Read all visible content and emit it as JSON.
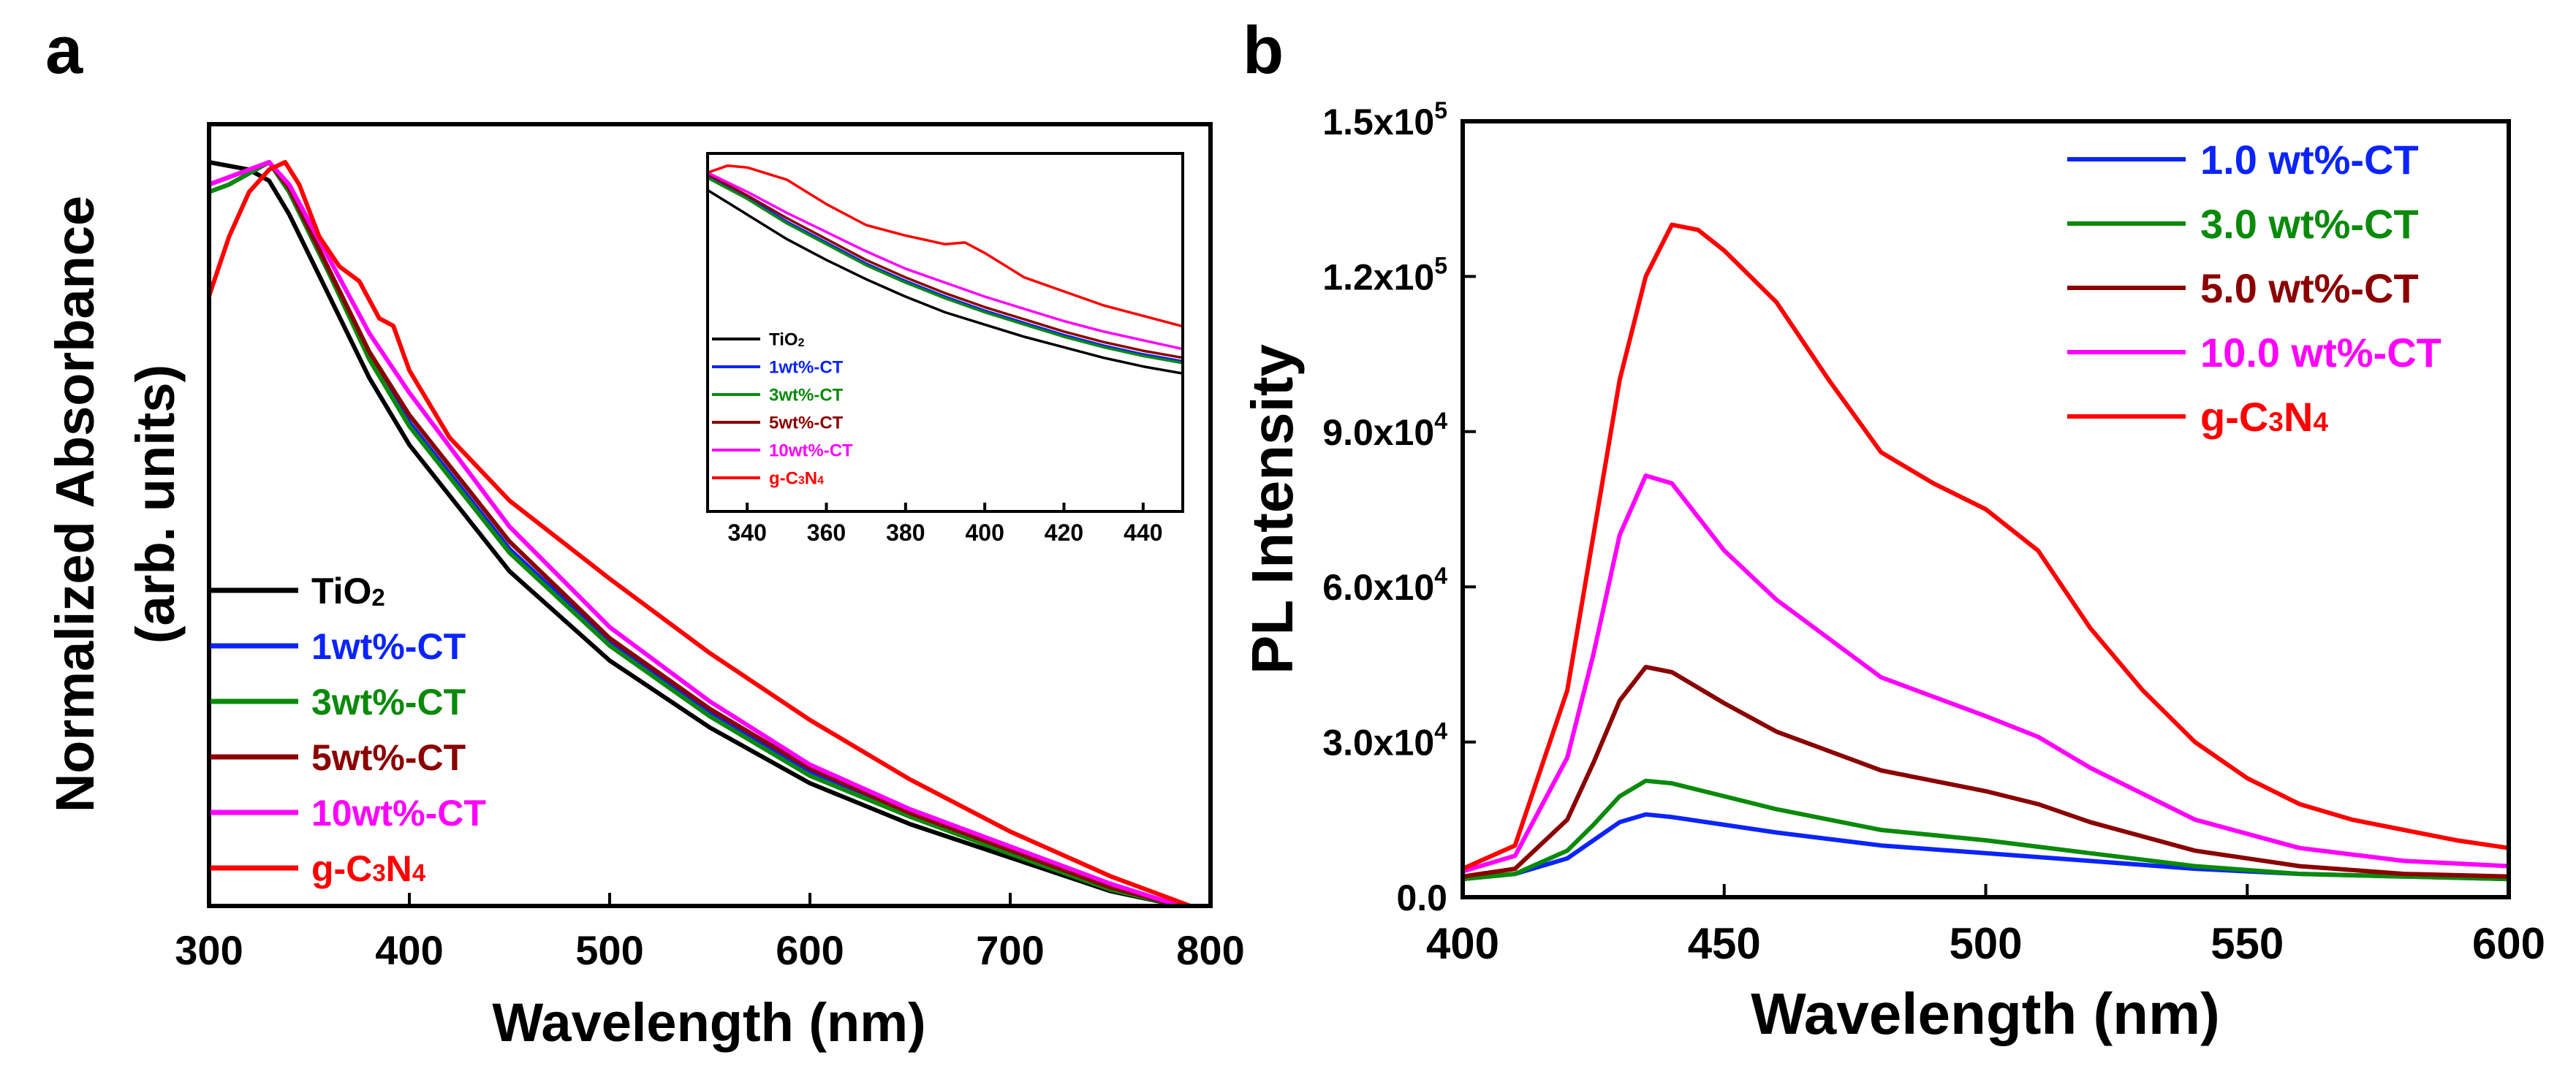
{
  "panels": {
    "a": {
      "letter": "a"
    },
    "b": {
      "letter": "b"
    }
  },
  "colors": {
    "TiO2": "#000000",
    "1wt%-CT": "#0b24fb",
    "3wt%-CT": "#0a8a0a",
    "5wt%-CT": "#8b0000",
    "10wt%-CT": "#ff00ff",
    "g-C3N4": "#ff0000"
  },
  "chart_data": [
    {
      "id": "absorbance",
      "type": "line",
      "title": "",
      "xlabel": "Wavelength (nm)",
      "ylabel": "Normalized Absorbance",
      "ylabel2": "(arb. units)",
      "xlim": [
        300,
        800
      ],
      "ylim": [
        0,
        1
      ],
      "xticks": [
        "300",
        "400",
        "500",
        "600",
        "700",
        "800"
      ],
      "legend": [
        {
          "base": "TiO",
          "sub": "2",
          "key": "TiO2"
        },
        {
          "text": "1wt%-CT",
          "key": "1wt%-CT"
        },
        {
          "text": "3wt%-CT",
          "key": "3wt%-CT"
        },
        {
          "text": "5wt%-CT",
          "key": "5wt%-CT"
        },
        {
          "text": "10wt%-CT",
          "key": "10wt%-CT"
        },
        {
          "parts": [
            "g-C",
            "3",
            "N",
            "4"
          ],
          "key": "g-C3N4"
        }
      ],
      "series": [
        {
          "name": "TiO2",
          "x": [
            300,
            310,
            320,
            330,
            340,
            360,
            380,
            400,
            450,
            500,
            550,
            600,
            650,
            700,
            750,
            785
          ],
          "y": [
            1.0,
            0.995,
            0.99,
            0.975,
            0.93,
            0.82,
            0.71,
            0.62,
            0.45,
            0.33,
            0.24,
            0.165,
            0.11,
            0.065,
            0.02,
            0.0
          ]
        },
        {
          "name": "1wt%-CT",
          "x": [
            300,
            310,
            320,
            330,
            340,
            360,
            380,
            400,
            450,
            500,
            550,
            600,
            650,
            700,
            750,
            785
          ],
          "y": [
            0.96,
            0.97,
            0.985,
            1.0,
            0.96,
            0.85,
            0.74,
            0.65,
            0.48,
            0.355,
            0.26,
            0.18,
            0.125,
            0.075,
            0.025,
            0.0
          ]
        },
        {
          "name": "3wt%-CT",
          "x": [
            300,
            310,
            320,
            330,
            340,
            360,
            380,
            400,
            450,
            500,
            550,
            600,
            650,
            700,
            750,
            785
          ],
          "y": [
            0.96,
            0.97,
            0.985,
            1.0,
            0.96,
            0.85,
            0.735,
            0.645,
            0.475,
            0.35,
            0.255,
            0.175,
            0.12,
            0.07,
            0.022,
            0.0
          ]
        },
        {
          "name": "5wt%-CT",
          "x": [
            300,
            310,
            320,
            330,
            340,
            360,
            380,
            400,
            450,
            500,
            550,
            600,
            650,
            700,
            750,
            785
          ],
          "y": [
            0.97,
            0.98,
            0.99,
            1.0,
            0.965,
            0.855,
            0.745,
            0.66,
            0.49,
            0.36,
            0.265,
            0.185,
            0.125,
            0.075,
            0.025,
            0.0
          ]
        },
        {
          "name": "10wt%-CT",
          "x": [
            300,
            310,
            320,
            330,
            340,
            360,
            380,
            400,
            450,
            500,
            550,
            600,
            650,
            700,
            750,
            785
          ],
          "y": [
            0.97,
            0.98,
            0.99,
            1.0,
            0.97,
            0.87,
            0.77,
            0.69,
            0.51,
            0.375,
            0.275,
            0.19,
            0.13,
            0.08,
            0.03,
            0.0
          ]
        },
        {
          "name": "g-C3N4",
          "x": [
            300,
            310,
            320,
            330,
            338,
            345,
            355,
            365,
            375,
            385,
            392,
            400,
            420,
            450,
            500,
            550,
            600,
            650,
            700,
            750,
            790
          ],
          "y": [
            0.82,
            0.9,
            0.96,
            0.99,
            1.0,
            0.97,
            0.9,
            0.86,
            0.84,
            0.79,
            0.78,
            0.72,
            0.63,
            0.545,
            0.44,
            0.34,
            0.25,
            0.17,
            0.1,
            0.04,
            0.0
          ]
        }
      ]
    },
    {
      "id": "absorbance-inset",
      "type": "line",
      "title": "",
      "xlabel": "",
      "ylabel": "",
      "xlim": [
        330,
        450
      ],
      "ylim": [
        0,
        1
      ],
      "xticks": [
        "340",
        "360",
        "380",
        "400",
        "420",
        "440"
      ],
      "legend": [
        {
          "base": "TiO",
          "sub": "2",
          "key": "TiO2"
        },
        {
          "text": "1wt%-CT",
          "key": "1wt%-CT"
        },
        {
          "text": "3wt%-CT",
          "key": "3wt%-CT"
        },
        {
          "text": "5wt%-CT",
          "key": "5wt%-CT"
        },
        {
          "text": "10wt%-CT",
          "key": "10wt%-CT"
        },
        {
          "parts": [
            "g-C",
            "3",
            "N",
            "4"
          ],
          "key": "g-C3N4"
        }
      ],
      "series": [
        {
          "name": "TiO2",
          "x": [
            330,
            340,
            350,
            360,
            370,
            380,
            390,
            400,
            410,
            420,
            430,
            440,
            450
          ],
          "y": [
            0.92,
            0.85,
            0.78,
            0.72,
            0.665,
            0.615,
            0.57,
            0.535,
            0.5,
            0.47,
            0.44,
            0.415,
            0.395
          ]
        },
        {
          "name": "1wt%-CT",
          "x": [
            330,
            340,
            350,
            360,
            370,
            380,
            390,
            400,
            410,
            420,
            430,
            440,
            450
          ],
          "y": [
            0.96,
            0.9,
            0.83,
            0.77,
            0.71,
            0.66,
            0.615,
            0.575,
            0.54,
            0.505,
            0.475,
            0.45,
            0.43
          ]
        },
        {
          "name": "3wt%-CT",
          "x": [
            330,
            340,
            350,
            360,
            370,
            380,
            390,
            400,
            410,
            420,
            430,
            440,
            450
          ],
          "y": [
            0.955,
            0.895,
            0.825,
            0.765,
            0.705,
            0.655,
            0.61,
            0.57,
            0.535,
            0.5,
            0.47,
            0.445,
            0.425
          ]
        },
        {
          "name": "5wt%-CT",
          "x": [
            330,
            340,
            350,
            360,
            370,
            380,
            390,
            400,
            410,
            420,
            430,
            440,
            450
          ],
          "y": [
            0.965,
            0.905,
            0.84,
            0.78,
            0.72,
            0.67,
            0.625,
            0.585,
            0.55,
            0.515,
            0.485,
            0.46,
            0.44
          ]
        },
        {
          "name": "10wt%-CT",
          "x": [
            330,
            340,
            350,
            360,
            370,
            380,
            390,
            400,
            410,
            420,
            430,
            440,
            450
          ],
          "y": [
            0.97,
            0.915,
            0.855,
            0.8,
            0.745,
            0.695,
            0.655,
            0.615,
            0.58,
            0.545,
            0.515,
            0.49,
            0.465
          ]
        },
        {
          "name": "g-C3N4",
          "x": [
            330,
            335,
            340,
            350,
            360,
            370,
            380,
            390,
            395,
            400,
            410,
            420,
            430,
            440,
            450
          ],
          "y": [
            0.97,
            0.99,
            0.985,
            0.95,
            0.88,
            0.82,
            0.79,
            0.765,
            0.77,
            0.74,
            0.67,
            0.63,
            0.59,
            0.56,
            0.53
          ]
        }
      ]
    },
    {
      "id": "pl",
      "type": "line",
      "title": "",
      "xlabel": "Wavelength (nm)",
      "ylabel": "PL Intensity",
      "xlim": [
        400,
        600
      ],
      "ylim": [
        0,
        150000
      ],
      "xticks": [
        "400",
        "450",
        "500",
        "550",
        "600"
      ],
      "yticks": [
        {
          "value": 0,
          "text": "0.0"
        },
        {
          "value": 30000,
          "base": "3.0x10",
          "exp": "4"
        },
        {
          "value": 60000,
          "base": "6.0x10",
          "exp": "4"
        },
        {
          "value": 90000,
          "base": "9.0x10",
          "exp": "4"
        },
        {
          "value": 120000,
          "base": "1.2x10",
          "exp": "5"
        },
        {
          "value": 150000,
          "base": "1.5x10",
          "exp": "5"
        }
      ],
      "legend": [
        {
          "text": "1.0 wt%-CT",
          "key": "1wt%-CT"
        },
        {
          "text": "3.0 wt%-CT",
          "key": "3wt%-CT"
        },
        {
          "text": "5.0 wt%-CT",
          "key": "5wt%-CT"
        },
        {
          "text": "10.0 wt%-CT",
          "key": "10wt%-CT"
        },
        {
          "parts": [
            "g-C",
            "3",
            "N",
            "4"
          ],
          "key": "g-C3N4"
        }
      ],
      "series": [
        {
          "name": "1wt%-CT",
          "x": [
            400,
            410,
            420,
            425,
            430,
            435,
            440,
            450,
            460,
            480,
            500,
            520,
            540,
            560,
            580,
            600
          ],
          "y": [
            3500,
            4500,
            7500,
            11000,
            14500,
            16000,
            15500,
            14000,
            12500,
            10000,
            8500,
            7000,
            5500,
            4500,
            4000,
            3500
          ]
        },
        {
          "name": "3wt%-CT",
          "x": [
            400,
            410,
            420,
            425,
            430,
            435,
            440,
            450,
            460,
            480,
            500,
            520,
            540,
            560,
            580,
            600
          ],
          "y": [
            3500,
            4500,
            9000,
            14000,
            19500,
            22500,
            22000,
            19500,
            17000,
            13000,
            11000,
            8500,
            6000,
            4500,
            4000,
            3500
          ]
        },
        {
          "name": "5wt%-CT",
          "x": [
            400,
            410,
            420,
            425,
            430,
            435,
            440,
            450,
            460,
            480,
            500,
            510,
            520,
            540,
            560,
            580,
            600
          ],
          "y": [
            4000,
            5500,
            15000,
            26000,
            38000,
            44500,
            43500,
            37500,
            32000,
            24500,
            20500,
            18000,
            14500,
            9000,
            6000,
            4500,
            4000
          ]
        },
        {
          "name": "10wt%-CT",
          "x": [
            400,
            410,
            420,
            425,
            430,
            435,
            440,
            450,
            460,
            480,
            500,
            510,
            520,
            540,
            560,
            580,
            600
          ],
          "y": [
            5000,
            8000,
            27000,
            47000,
            70000,
            81500,
            80000,
            67000,
            57500,
            42500,
            35000,
            31000,
            25000,
            15000,
            9500,
            7000,
            6000
          ]
        },
        {
          "name": "g-C3N4",
          "x": [
            400,
            410,
            420,
            425,
            430,
            435,
            440,
            445,
            450,
            460,
            470,
            480,
            490,
            500,
            510,
            520,
            530,
            540,
            550,
            560,
            570,
            580,
            590,
            600
          ],
          "y": [
            5500,
            10000,
            40000,
            70000,
            100000,
            120000,
            130000,
            129000,
            125000,
            115000,
            100000,
            86000,
            80000,
            75000,
            67000,
            52000,
            40000,
            30000,
            23000,
            18000,
            15000,
            13000,
            11000,
            9500
          ]
        }
      ]
    }
  ]
}
